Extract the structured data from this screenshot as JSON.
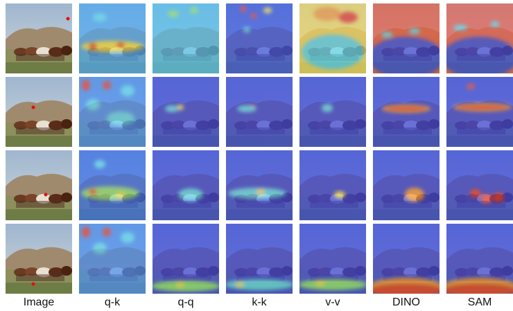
{
  "columns": [
    "Image",
    "q-k",
    "q-q",
    "k-k",
    "v-v",
    "DINO",
    "SAM"
  ]
}
